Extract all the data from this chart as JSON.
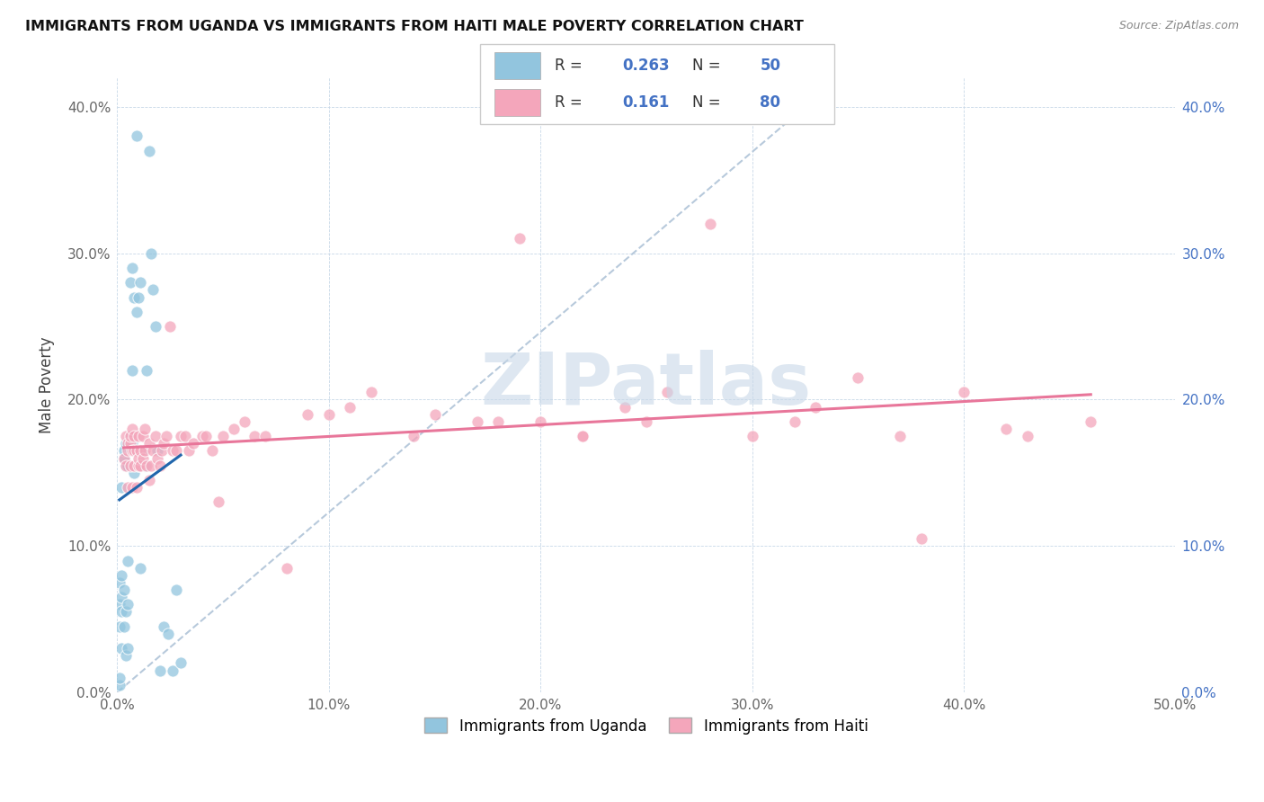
{
  "title": "IMMIGRANTS FROM UGANDA VS IMMIGRANTS FROM HAITI MALE POVERTY CORRELATION CHART",
  "source": "Source: ZipAtlas.com",
  "ylabel": "Male Poverty",
  "xlim": [
    0.0,
    0.5
  ],
  "ylim": [
    0.0,
    0.42
  ],
  "uganda_color": "#92c5de",
  "haiti_color": "#f4a6bb",
  "uganda_line_color": "#2166ac",
  "haiti_line_color": "#e8769a",
  "dashed_line_color": "#b0c4d8",
  "uganda_R": 0.263,
  "uganda_N": 50,
  "haiti_R": 0.161,
  "haiti_N": 80,
  "watermark": "ZIPatlas",
  "uganda_x": [
    0.001,
    0.001,
    0.001,
    0.001,
    0.001,
    0.002,
    0.002,
    0.002,
    0.002,
    0.002,
    0.003,
    0.003,
    0.003,
    0.003,
    0.004,
    0.004,
    0.004,
    0.004,
    0.005,
    0.005,
    0.005,
    0.005,
    0.006,
    0.006,
    0.006,
    0.007,
    0.007,
    0.007,
    0.008,
    0.008,
    0.009,
    0.009,
    0.01,
    0.01,
    0.011,
    0.011,
    0.012,
    0.013,
    0.014,
    0.015,
    0.016,
    0.017,
    0.018,
    0.019,
    0.02,
    0.022,
    0.024,
    0.026,
    0.028,
    0.03
  ],
  "uganda_y": [
    0.005,
    0.01,
    0.045,
    0.06,
    0.075,
    0.03,
    0.055,
    0.065,
    0.08,
    0.14,
    0.045,
    0.07,
    0.16,
    0.165,
    0.025,
    0.055,
    0.155,
    0.17,
    0.03,
    0.06,
    0.09,
    0.155,
    0.165,
    0.175,
    0.28,
    0.17,
    0.22,
    0.29,
    0.15,
    0.27,
    0.26,
    0.38,
    0.155,
    0.27,
    0.085,
    0.28,
    0.165,
    0.155,
    0.22,
    0.37,
    0.3,
    0.275,
    0.25,
    0.165,
    0.015,
    0.045,
    0.04,
    0.015,
    0.07,
    0.02
  ],
  "haiti_x": [
    0.003,
    0.004,
    0.004,
    0.005,
    0.005,
    0.005,
    0.006,
    0.006,
    0.006,
    0.007,
    0.007,
    0.007,
    0.008,
    0.008,
    0.008,
    0.009,
    0.009,
    0.01,
    0.01,
    0.01,
    0.011,
    0.011,
    0.012,
    0.012,
    0.013,
    0.013,
    0.014,
    0.015,
    0.015,
    0.016,
    0.017,
    0.018,
    0.019,
    0.02,
    0.021,
    0.022,
    0.023,
    0.025,
    0.026,
    0.028,
    0.03,
    0.032,
    0.034,
    0.036,
    0.04,
    0.042,
    0.045,
    0.048,
    0.05,
    0.055,
    0.06,
    0.065,
    0.07,
    0.08,
    0.09,
    0.1,
    0.11,
    0.12,
    0.14,
    0.15,
    0.17,
    0.18,
    0.2,
    0.22,
    0.24,
    0.26,
    0.28,
    0.3,
    0.32,
    0.35,
    0.37,
    0.4,
    0.43,
    0.46,
    0.19,
    0.22,
    0.25,
    0.33,
    0.38,
    0.42
  ],
  "haiti_y": [
    0.16,
    0.155,
    0.175,
    0.14,
    0.165,
    0.17,
    0.155,
    0.17,
    0.175,
    0.14,
    0.165,
    0.18,
    0.155,
    0.165,
    0.175,
    0.14,
    0.165,
    0.155,
    0.16,
    0.175,
    0.155,
    0.165,
    0.16,
    0.175,
    0.165,
    0.18,
    0.155,
    0.145,
    0.17,
    0.155,
    0.165,
    0.175,
    0.16,
    0.155,
    0.165,
    0.17,
    0.175,
    0.25,
    0.165,
    0.165,
    0.175,
    0.175,
    0.165,
    0.17,
    0.175,
    0.175,
    0.165,
    0.13,
    0.175,
    0.18,
    0.185,
    0.175,
    0.175,
    0.085,
    0.19,
    0.19,
    0.195,
    0.205,
    0.175,
    0.19,
    0.185,
    0.185,
    0.185,
    0.175,
    0.195,
    0.205,
    0.32,
    0.175,
    0.185,
    0.215,
    0.175,
    0.205,
    0.175,
    0.185,
    0.31,
    0.175,
    0.185,
    0.195,
    0.105,
    0.18
  ]
}
